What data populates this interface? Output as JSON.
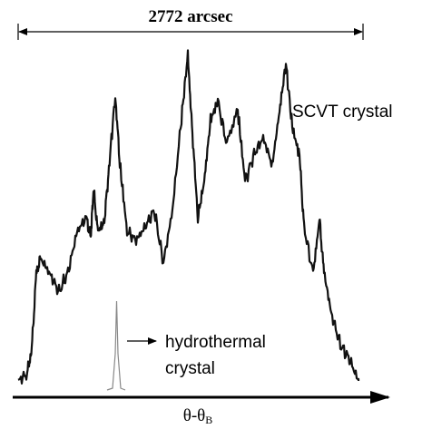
{
  "figure": {
    "width_label": "2772 arcsec",
    "curve_label": "SCVT crystal",
    "reference_label": [
      "hydrothermal",
      "crystal"
    ],
    "axis_label": {
      "main": "θ-θ",
      "subscript": "B"
    }
  }
}
